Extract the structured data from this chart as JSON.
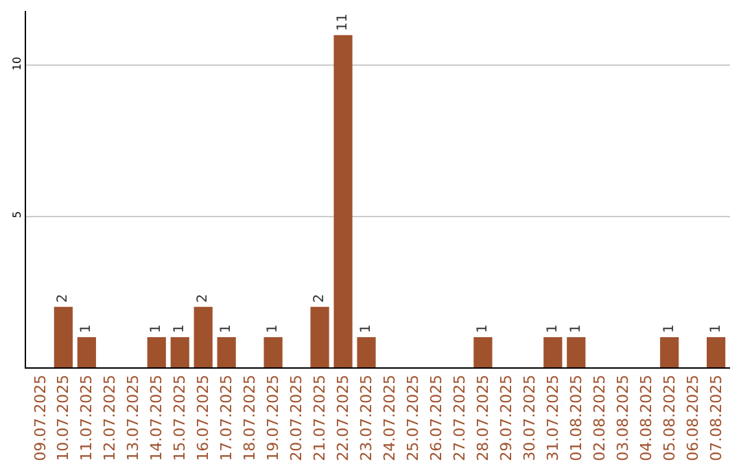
{
  "chart_data": {
    "type": "bar",
    "categories": [
      "09.07.2025",
      "10.07.2025",
      "11.07.2025",
      "12.07.2025",
      "13.07.2025",
      "14.07.2025",
      "15.07.2025",
      "16.07.2025",
      "17.07.2025",
      "18.07.2025",
      "19.07.2025",
      "20.07.2025",
      "21.07.2025",
      "22.07.2025",
      "23.07.2025",
      "24.07.2025",
      "25.07.2025",
      "26.07.2025",
      "27.07.2025",
      "28.07.2025",
      "29.07.2025",
      "30.07.2025",
      "31.07.2025",
      "01.08.2025",
      "02.08.2025",
      "03.08.2025",
      "04.08.2025",
      "05.08.2025",
      "06.08.2025",
      "07.08.2025"
    ],
    "values": [
      0,
      2,
      1,
      0,
      0,
      1,
      1,
      2,
      1,
      0,
      1,
      0,
      2,
      11,
      1,
      0,
      0,
      0,
      0,
      1,
      0,
      0,
      1,
      1,
      0,
      0,
      0,
      1,
      0,
      1
    ],
    "value_labels": [
      null,
      "2",
      "1",
      null,
      null,
      "1",
      "1",
      "2",
      "1",
      null,
      "1",
      null,
      "2",
      "11",
      "1",
      null,
      null,
      null,
      null,
      "1",
      null,
      null,
      "1",
      "1",
      null,
      null,
      null,
      "1",
      null,
      "1"
    ],
    "color": "#a0522d",
    "ylim": [
      0,
      11.8
    ],
    "yticks": [
      5,
      10
    ],
    "grid": "y"
  }
}
